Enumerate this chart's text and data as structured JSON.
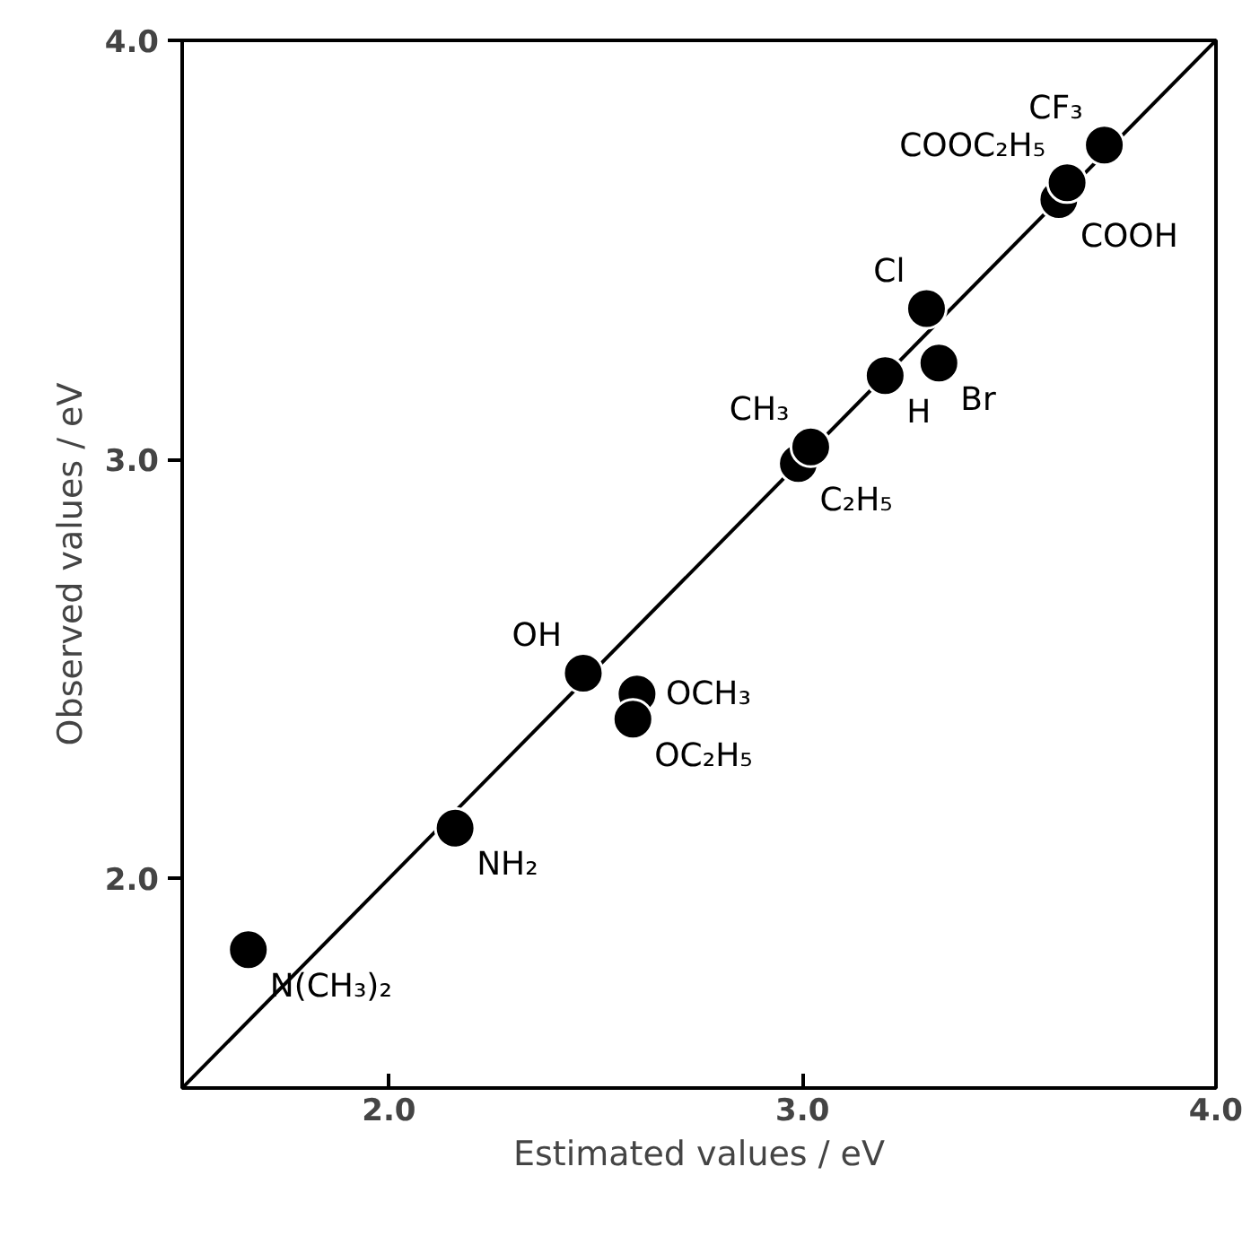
{
  "chart_data": {
    "type": "scatter",
    "xlabel": "Estimated values / eV",
    "ylabel": "Observed values / eV",
    "xlim": [
      1.5,
      4.0
    ],
    "ylim": [
      1.5,
      4.0
    ],
    "xticks": [
      {
        "value": 2.0,
        "label": "2.0"
      },
      {
        "value": 3.0,
        "label": "3.0"
      },
      {
        "value": 4.0,
        "label": "4.0"
      }
    ],
    "yticks": [
      {
        "value": 2.0,
        "label": "2.0"
      },
      {
        "value": 3.0,
        "label": "3.0"
      },
      {
        "value": 4.0,
        "label": "4.0"
      }
    ],
    "grid": false,
    "series": [
      {
        "color": "#000000",
        "marker": "circle",
        "x": [
          1.66,
          2.16,
          2.47,
          2.6,
          2.59,
          2.99,
          3.02,
          3.2,
          3.33,
          3.3,
          3.62,
          3.64,
          3.73
        ],
        "values": [
          1.83,
          2.12,
          2.49,
          2.44,
          2.38,
          2.99,
          3.03,
          3.2,
          3.23,
          3.36,
          3.62,
          3.66,
          3.75
        ],
        "value_labels": [
          "N(CH₃)₂",
          "NH₂",
          "OH",
          "OCH₃",
          "OC₂H₅",
          "C₂H₅",
          "CH₃",
          "H",
          "Br",
          "Cl",
          "COOH",
          "COOC₂H₅",
          "CF₃"
        ]
      },
      {
        "type": "line",
        "color": "#000000",
        "x": [
          1.5,
          4.0
        ],
        "values": [
          1.5,
          4.0
        ]
      }
    ]
  }
}
